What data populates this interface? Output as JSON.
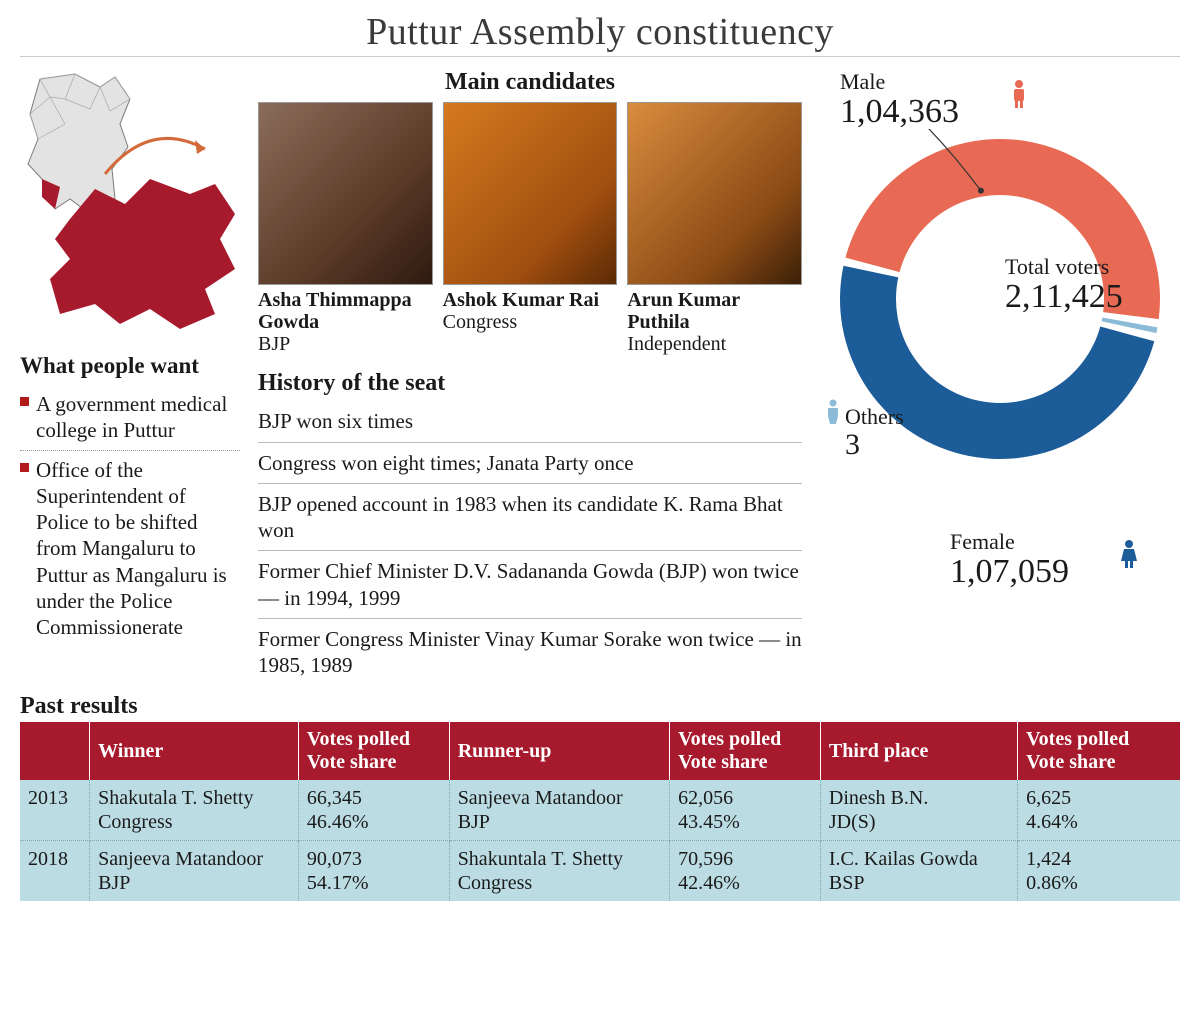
{
  "title": "Puttur Assembly constituency",
  "map": {
    "state_fill": "#d9d9d9",
    "state_stroke": "#7a7a7a",
    "district_fill": "#a7192c",
    "arrow_color": "#d46a3a"
  },
  "wants": {
    "heading": "What people want",
    "bullet_color": "#b31b1b",
    "items": [
      "A government medical college in Puttur",
      "Office of the Superintendent of Police to be shifted from Mangaluru to Puttur as Mangaluru is under the Police Commissionerate"
    ]
  },
  "candidates": {
    "heading": "Main candidates",
    "items": [
      {
        "name": "Asha Thimmappa Gowda",
        "party": "BJP"
      },
      {
        "name": "Ashok Kumar Rai",
        "party": "Congress"
      },
      {
        "name": "Arun Kumar Puthila",
        "party": "Independent"
      }
    ]
  },
  "history": {
    "heading": "History of the seat",
    "items": [
      "BJP won six times",
      "Congress won eight times; Janata Party once",
      "BJP opened account in 1983 when its candidate K. Rama Bhat won",
      "Former Chief Minister D.V. Sadananda Gowda (BJP) won twice — in 1994, 1999",
      "Former Congress Minister Vinay Kumar Sorake won twice — in 1985, 1989"
    ]
  },
  "voters": {
    "type": "donut",
    "male": {
      "label": "Male",
      "count": "1,04,363",
      "value": 104363,
      "color": "#e96a54"
    },
    "female": {
      "label": "Female",
      "count": "1,07,059",
      "value": 107059,
      "color": "#1c5d99"
    },
    "others": {
      "label": "Others",
      "count": "3",
      "value": 3,
      "color": "#8bbbd6"
    },
    "total": {
      "label": "Total voters",
      "count": "2,11,425",
      "value": 211425
    },
    "ring_thickness": 56,
    "outer_radius": 160,
    "gap_degrees": 3,
    "background": "#ffffff",
    "icon_male_color": "#e96a54",
    "icon_female_color": "#1c5d99",
    "icon_others_color": "#8bbbd6",
    "leader_color": "#333333"
  },
  "past_results": {
    "heading": "Past  results",
    "header_bg": "#a7192c",
    "header_fg": "#ffffff",
    "cell_bg": "#bcdce3",
    "columns": [
      "",
      "Winner",
      "Votes polled\nVote share",
      "Runner-up",
      "Votes polled\nVote share",
      "Third place",
      "Votes polled\nVote share"
    ],
    "rows": [
      {
        "year": "2013",
        "winner": "Shakutala T. Shetty\nCongress",
        "winner_votes": "66,345\n46.46%",
        "runner": "Sanjeeva Matandoor\nBJP",
        "runner_votes": "62,056\n43.45%",
        "third": "Dinesh B.N.\nJD(S)",
        "third_votes": "6,625\n4.64%"
      },
      {
        "year": "2018",
        "winner": "Sanjeeva Matandoor\nBJP",
        "winner_votes": "90,073\n54.17%",
        "runner": "Shakuntala T. Shetty\nCongress",
        "runner_votes": "70,596\n42.46%",
        "third": "I.C. Kailas Gowda\nBSP",
        "third_votes": "1,424\n0.86%"
      }
    ],
    "col_widths_pct": [
      6,
      18,
      13,
      19,
      13,
      17,
      14
    ]
  },
  "typography": {
    "title_fontsize": 38,
    "section_heading_fontsize": 24,
    "body_fontsize": 21,
    "big_number_fontsize": 34
  }
}
